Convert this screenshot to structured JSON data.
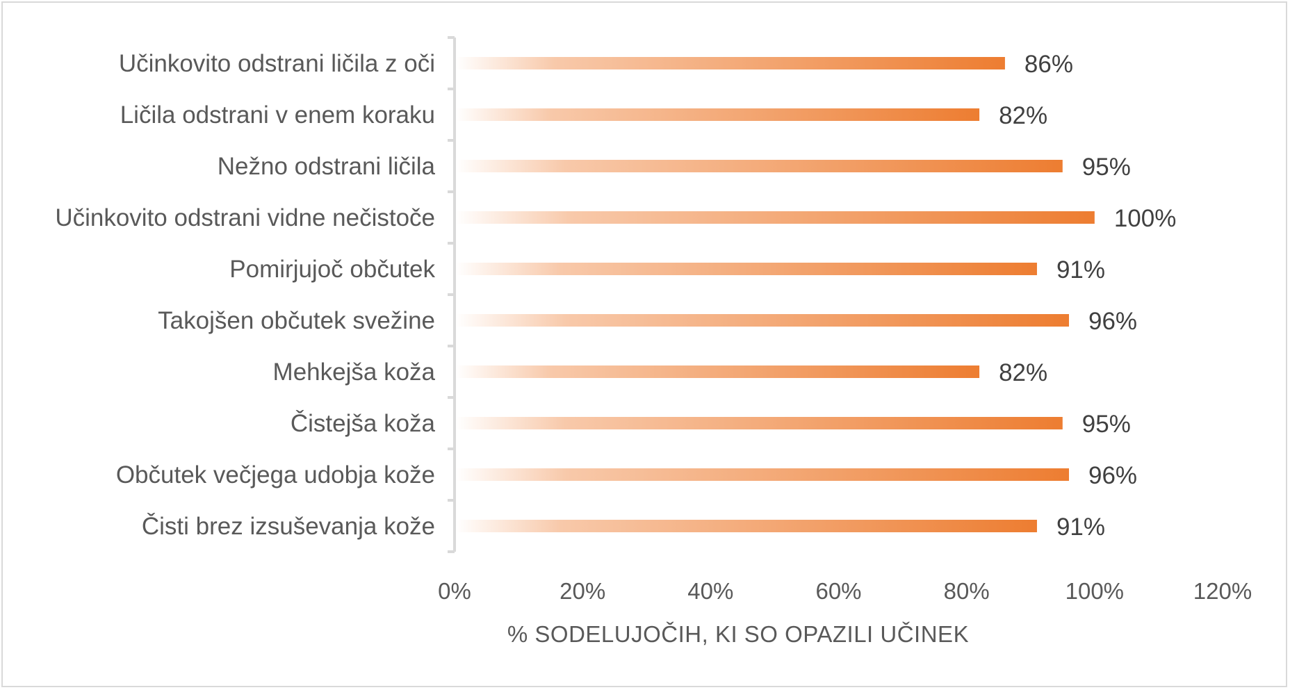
{
  "chart_data": {
    "type": "bar",
    "orientation": "horizontal",
    "categories": [
      "Učinkovito odstrani ličila z oči",
      "Ličila odstrani v enem koraku",
      "Nežno odstrani ličila",
      "Učinkovito odstrani vidne nečistoče",
      "Pomirjujoč občutek",
      "Takojšen občutek svežine",
      "Mehkejša koža",
      "Čistejša koža",
      "Občutek večjega udobja kože",
      "Čisti brez izsuševanja kože"
    ],
    "values": [
      86,
      82,
      95,
      100,
      91,
      96,
      82,
      95,
      96,
      91
    ],
    "value_labels": [
      "86%",
      "82%",
      "95%",
      "100%",
      "91%",
      "96%",
      "82%",
      "95%",
      "96%",
      "91%"
    ],
    "x_ticks": [
      0,
      20,
      40,
      60,
      80,
      100,
      120
    ],
    "x_tick_labels": [
      "0%",
      "20%",
      "40%",
      "60%",
      "80%",
      "100%",
      "120%"
    ],
    "xlim": [
      0,
      120
    ],
    "xlabel": "% SODELUJOČIH, KI SO OPAZILI UČINEK",
    "ylabel": "",
    "title": "",
    "grid": false,
    "legend": "none",
    "bar_color": "#ed7d31",
    "bar_fade_color": "#ffffff",
    "axis_color": "#d9d9d9"
  }
}
